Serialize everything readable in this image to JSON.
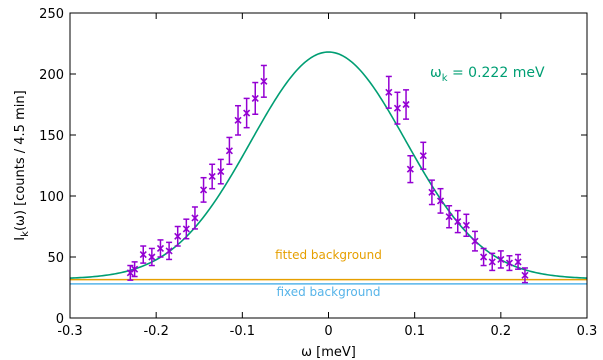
{
  "chart_data": {
    "type": "scatter",
    "xlabel": "ω [meV]",
    "ylabel": "I_k(ω) [counts / 4.5 min]",
    "xlim": [
      -0.3,
      0.3
    ],
    "ylim": [
      0,
      250
    ],
    "xticks": [
      -0.3,
      -0.2,
      -0.1,
      0,
      0.1,
      0.2,
      0.3
    ],
    "xtick_labels": [
      "-0.3",
      "-0.2",
      "-0.1",
      "0",
      "0.1",
      "0.2",
      "0.3"
    ],
    "yticks": [
      0,
      50,
      100,
      150,
      200,
      250
    ],
    "ytick_labels": [
      "0",
      "50",
      "100",
      "150",
      "200",
      "250"
    ],
    "grid": false,
    "annotations": {
      "omega": {
        "text_main": "ω",
        "text_sub": "k",
        "text_rest": " = 0.222 meV",
        "color": "#009e73"
      },
      "fitted_background": {
        "text": "fitted background",
        "color": "#e69f00",
        "y": 31.5
      },
      "fixed_background": {
        "text": "fixed background",
        "color": "#56b4e9",
        "y": 28
      }
    },
    "fit_curve": {
      "color": "#009e73",
      "peak": 218,
      "center": 0,
      "sigma": 0.09,
      "baseline": 32,
      "note_points": [
        [
          -0.3,
          34
        ],
        [
          -0.2,
          57
        ],
        [
          -0.1,
          153
        ],
        [
          0,
          218
        ],
        [
          0.1,
          153
        ],
        [
          0.2,
          57
        ],
        [
          0.3,
          34
        ]
      ]
    },
    "series": [
      {
        "color": "#9400d3",
        "points": [
          [
            -0.23,
            37,
            6
          ],
          [
            -0.225,
            40,
            6
          ],
          [
            -0.215,
            52,
            7
          ],
          [
            -0.205,
            50,
            7
          ],
          [
            -0.195,
            57,
            7
          ],
          [
            -0.185,
            55,
            7
          ],
          [
            -0.175,
            67,
            8
          ],
          [
            -0.165,
            73,
            8
          ],
          [
            -0.155,
            82,
            9
          ],
          [
            -0.145,
            105,
            10
          ],
          [
            -0.135,
            116,
            10
          ],
          [
            -0.125,
            120,
            10
          ],
          [
            -0.115,
            137,
            11
          ],
          [
            -0.105,
            162,
            12
          ],
          [
            -0.095,
            168,
            12
          ],
          [
            -0.085,
            180,
            13
          ],
          [
            -0.075,
            194,
            13
          ],
          [
            0.07,
            185,
            13
          ],
          [
            0.08,
            172,
            13
          ],
          [
            0.09,
            175,
            12
          ],
          [
            0.095,
            122,
            11
          ],
          [
            0.11,
            133,
            11
          ],
          [
            0.12,
            103,
            10
          ],
          [
            0.13,
            96,
            10
          ],
          [
            0.14,
            83,
            9
          ],
          [
            0.15,
            79,
            9
          ],
          [
            0.16,
            76,
            9
          ],
          [
            0.17,
            63,
            8
          ],
          [
            0.18,
            50,
            7
          ],
          [
            0.19,
            46,
            7
          ],
          [
            0.2,
            48,
            7
          ],
          [
            0.21,
            45,
            6
          ],
          [
            0.22,
            46,
            6
          ],
          [
            0.228,
            35,
            6
          ]
        ]
      }
    ]
  }
}
